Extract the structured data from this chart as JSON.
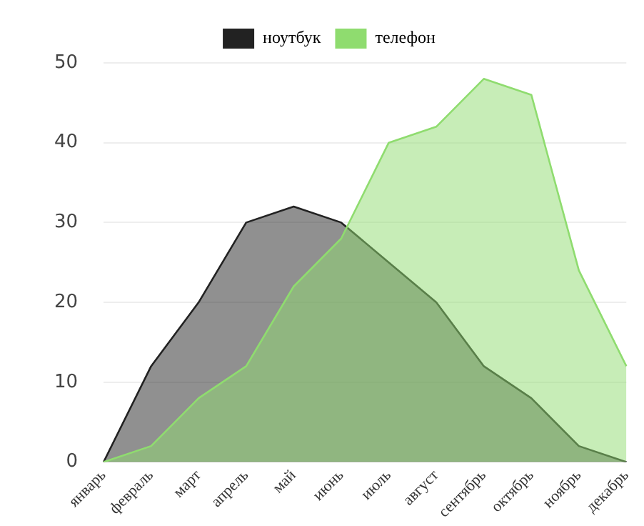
{
  "chart_data": {
    "type": "area",
    "categories": [
      "январь",
      "февраль",
      "март",
      "апрель",
      "май",
      "июнь",
      "июль",
      "август",
      "сентябрь",
      "октябрь",
      "ноябрь",
      "декабрь"
    ],
    "series": [
      {
        "name": "ноутбук",
        "color": "#222222",
        "values": [
          0,
          12,
          20,
          30,
          32,
          30,
          25,
          20,
          12,
          8,
          2,
          0
        ]
      },
      {
        "name": "телефон",
        "color": "#8fdc6f",
        "values": [
          0,
          2,
          8,
          12,
          22,
          28,
          40,
          42,
          48,
          46,
          24,
          12
        ]
      }
    ],
    "ylim": [
      0,
      50
    ],
    "yticks": [
      0,
      10,
      20,
      30,
      40,
      50
    ],
    "grid": "y",
    "legend": "top"
  }
}
